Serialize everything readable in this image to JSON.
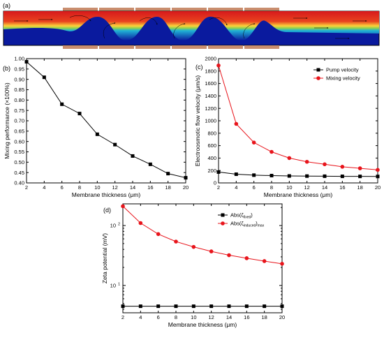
{
  "panels": {
    "a": {
      "label": "(a)"
    },
    "b": {
      "label": "(b)"
    },
    "c": {
      "label": "(c)"
    },
    "d": {
      "label": "(d)"
    }
  },
  "colors": {
    "black_series": "#000000",
    "red_series": "#e8141b",
    "field_high": "#d7191c",
    "field_low": "#0a1a9e",
    "electrode": "#c98d6e"
  },
  "chart_data": [
    {
      "id": "b",
      "type": "line",
      "xlabel": "Membrane thickness (μm)",
      "ylabel": "Mixing performance (×100%)",
      "x": [
        2,
        4,
        6,
        8,
        10,
        12,
        14,
        16,
        18,
        20
      ],
      "xlim": [
        2,
        20
      ],
      "ylim": [
        0.4,
        1.0
      ],
      "xticks": [
        "2",
        "4",
        "6",
        "8",
        "10",
        "12",
        "14",
        "16",
        "18",
        "20"
      ],
      "yticks": [
        "0.40",
        "0.45",
        "0.50",
        "0.55",
        "0.60",
        "0.65",
        "0.70",
        "0.75",
        "0.80",
        "0.85",
        "0.90",
        "0.95",
        "1.00"
      ],
      "series": [
        {
          "values": [
            0.985,
            0.91,
            0.78,
            0.735,
            0.635,
            0.585,
            0.53,
            0.49,
            0.445,
            0.425
          ],
          "marker": "square",
          "color": "#000000"
        }
      ]
    },
    {
      "id": "c",
      "type": "line",
      "xlabel": "Membrane thickness (μm)",
      "ylabel": "Electroosmotic flow velocity (μm/s)",
      "x": [
        2,
        4,
        6,
        8,
        10,
        12,
        14,
        16,
        18,
        20
      ],
      "xlim": [
        2,
        20
      ],
      "ylim": [
        0,
        2000
      ],
      "xticks": [
        "2",
        "4",
        "6",
        "8",
        "10",
        "12",
        "14",
        "16",
        "18",
        "20"
      ],
      "yticks": [
        "0",
        "200",
        "400",
        "600",
        "800",
        "1000",
        "1200",
        "1400",
        "1600",
        "1800",
        "2000"
      ],
      "legend": "top-right",
      "series": [
        {
          "name": "Pump velocity",
          "values": [
            175,
            140,
            125,
            118,
            112,
            110,
            108,
            106,
            105,
            104
          ],
          "marker": "square",
          "color": "#000000"
        },
        {
          "name": "Mixing velocity",
          "values": [
            1890,
            950,
            650,
            500,
            400,
            340,
            300,
            260,
            235,
            210
          ],
          "marker": "circle",
          "color": "#e8141b"
        }
      ]
    },
    {
      "id": "d",
      "type": "line",
      "scale": "log",
      "xlabel": "Membrane thickness (μm)",
      "ylabel": "Zeta potential (mV)",
      "x": [
        2,
        4,
        6,
        8,
        10,
        12,
        14,
        16,
        18,
        20
      ],
      "xlim": [
        2,
        20
      ],
      "ylim": [
        3.5,
        230
      ],
      "xticks": [
        "2",
        "4",
        "6",
        "8",
        "10",
        "12",
        "14",
        "16",
        "18",
        "20"
      ],
      "yticks": [
        {
          "value": 10,
          "base": "10",
          "exp": "1"
        },
        {
          "value": 100,
          "base": "10",
          "exp": "2"
        }
      ],
      "legend": "top-right",
      "series": [
        {
          "name_main": "Abs(ζ",
          "name_sub": "fixed",
          "name_end": ")",
          "values": [
            4.5,
            4.5,
            4.5,
            4.5,
            4.5,
            4.5,
            4.5,
            4.5,
            4.5,
            4.5
          ],
          "marker": "square",
          "color": "#000000"
        },
        {
          "name_main": "Abs(ζ",
          "name_sub": "induced",
          "name_end": ")",
          "name_sub2": "max",
          "values": [
            210,
            110,
            72,
            54,
            44,
            37,
            32,
            28.5,
            25.5,
            23
          ],
          "marker": "circle",
          "color": "#e8141b"
        }
      ]
    }
  ]
}
